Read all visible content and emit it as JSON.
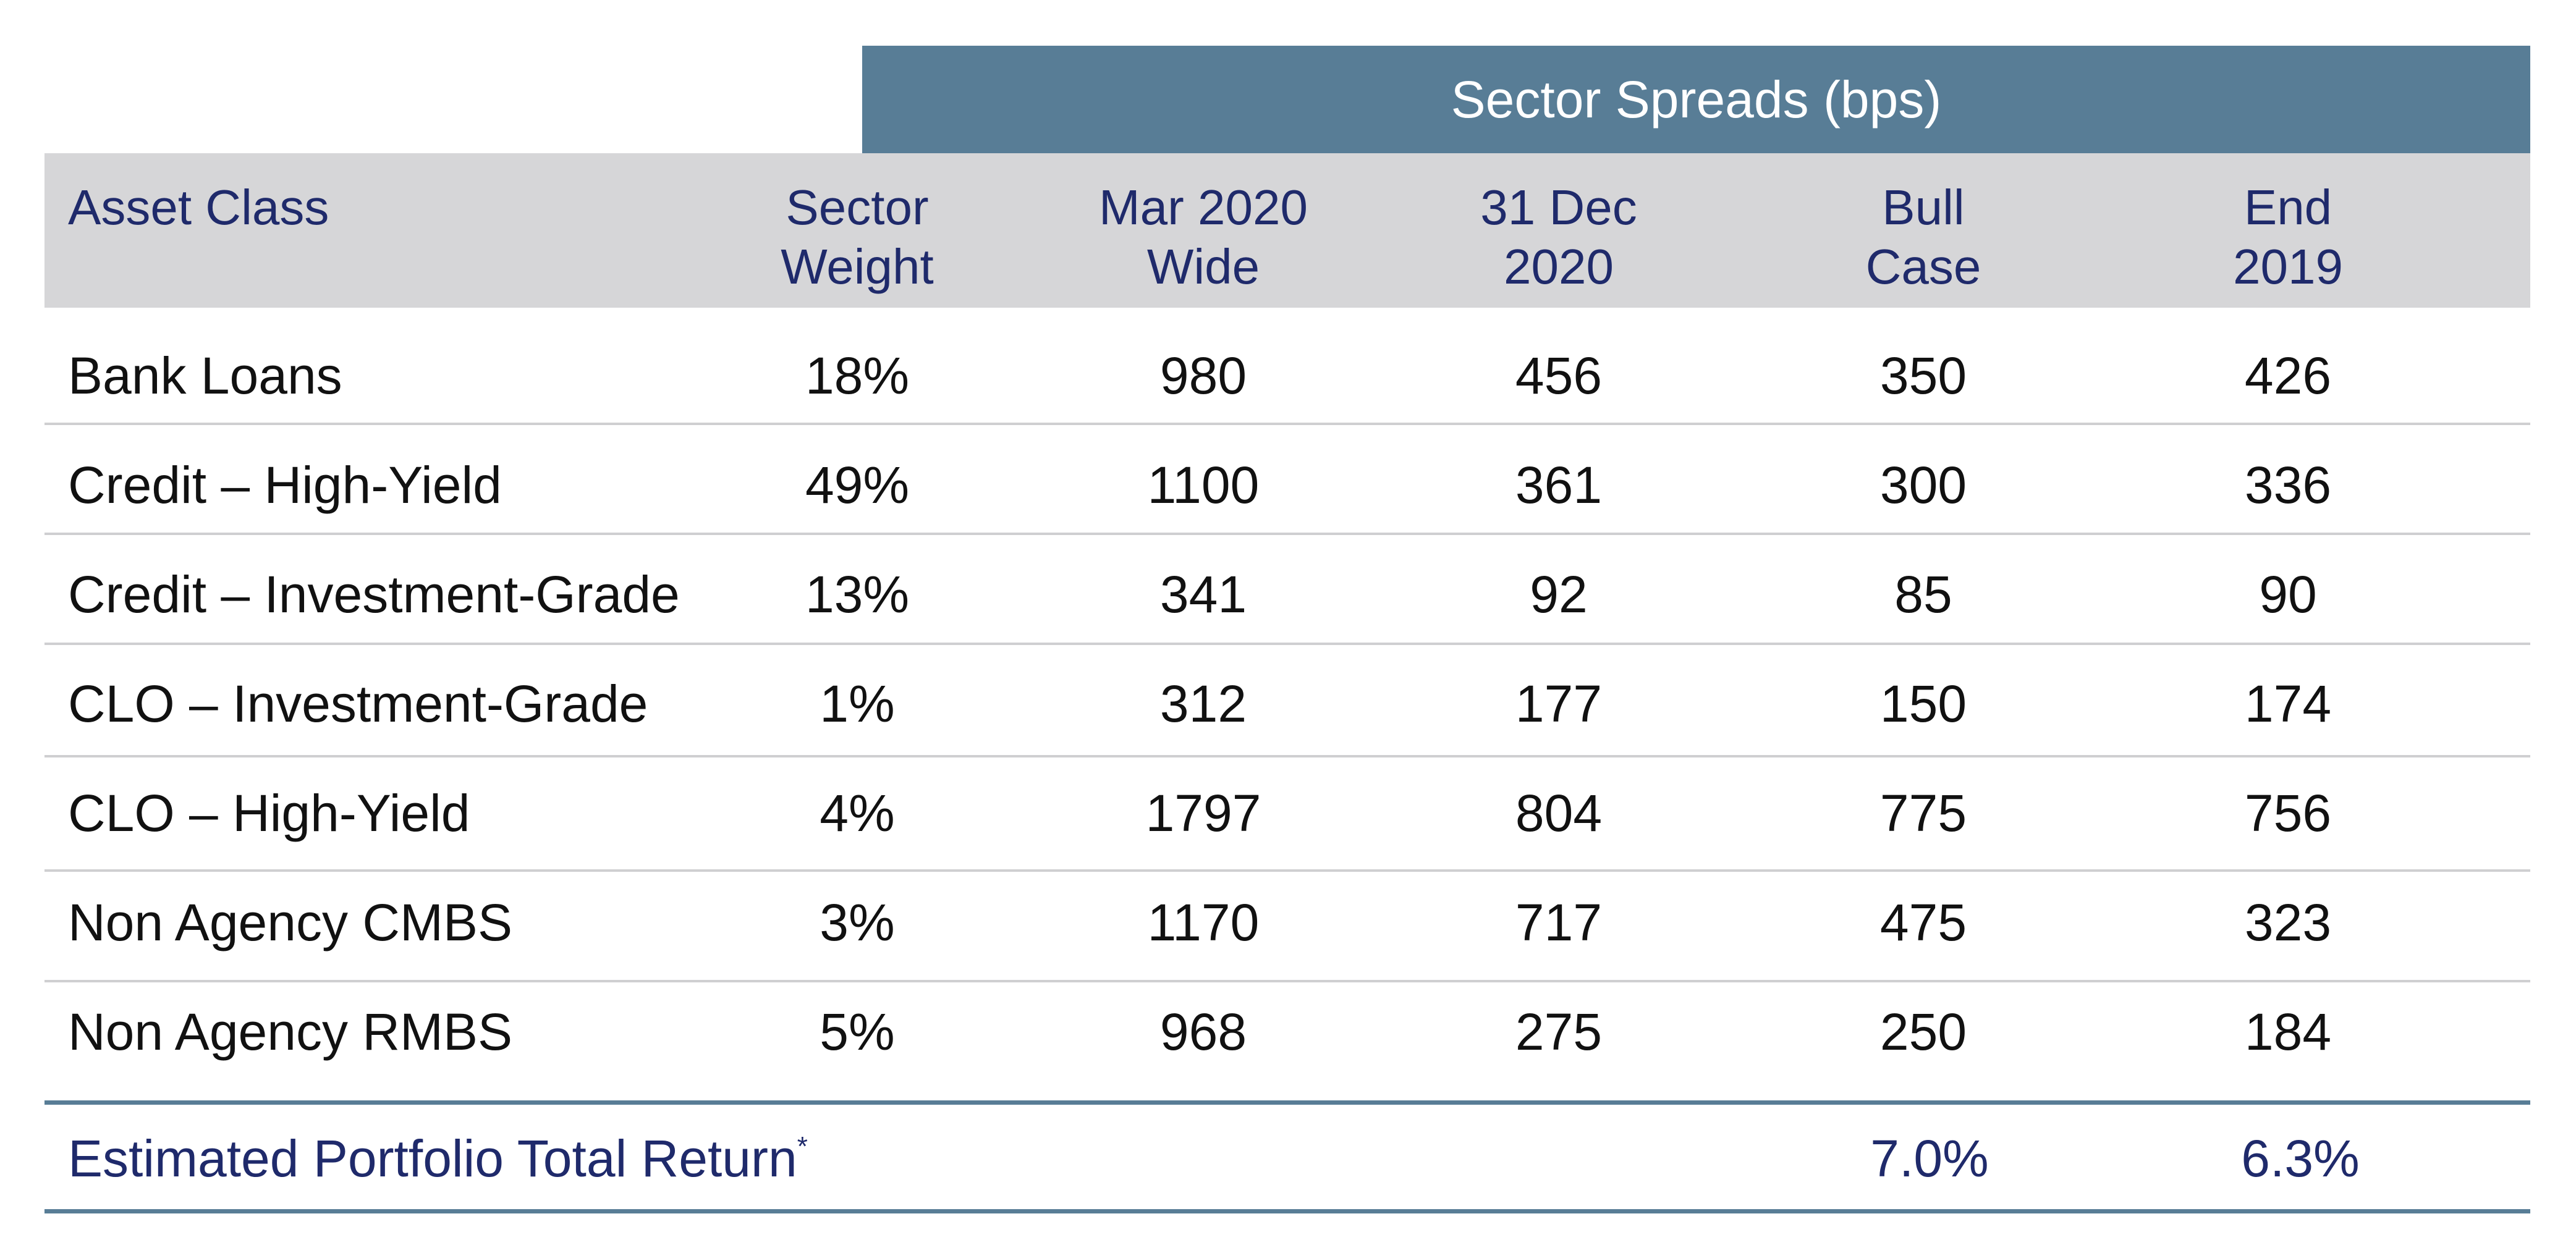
{
  "header": {
    "group_label": "Sector Spreads (bps)",
    "columns": [
      "Asset Class",
      "Sector\nWeight",
      "Mar 2020\nWide",
      "31 Dec\n2020",
      "Bull\nCase",
      "End\n2019"
    ]
  },
  "rows": [
    {
      "asset": "Bank Loans",
      "weight": "18%",
      "mar2020": "980",
      "dec2020": "456",
      "bull": "350",
      "end2019": "426"
    },
    {
      "asset": "Credit – High-Yield",
      "weight": "49%",
      "mar2020": "1100",
      "dec2020": "361",
      "bull": "300",
      "end2019": "336"
    },
    {
      "asset": "Credit – Investment-Grade",
      "weight": "13%",
      "mar2020": "341",
      "dec2020": "92",
      "bull": "85",
      "end2019": "90"
    },
    {
      "asset": "CLO – Investment-Grade",
      "weight": "1%",
      "mar2020": "312",
      "dec2020": "177",
      "bull": "150",
      "end2019": "174"
    },
    {
      "asset": "CLO – High-Yield",
      "weight": "4%",
      "mar2020": "1797",
      "dec2020": "804",
      "bull": "775",
      "end2019": "756"
    },
    {
      "asset": "Non Agency CMBS",
      "weight": "3%",
      "mar2020": "1170",
      "dec2020": "717",
      "bull": "475",
      "end2019": "323"
    },
    {
      "asset": "Non Agency RMBS",
      "weight": "5%",
      "mar2020": "968",
      "dec2020": "275",
      "bull": "250",
      "end2019": "184"
    }
  ],
  "total": {
    "label": "Estimated Portfolio Total Return",
    "footnote_mark": "*",
    "bull": "7.0%",
    "end2019": "6.3%"
  },
  "colors": {
    "header_band": "#587d96",
    "column_header_bg": "#d6d6d8",
    "header_text": "#1f2a6b"
  }
}
